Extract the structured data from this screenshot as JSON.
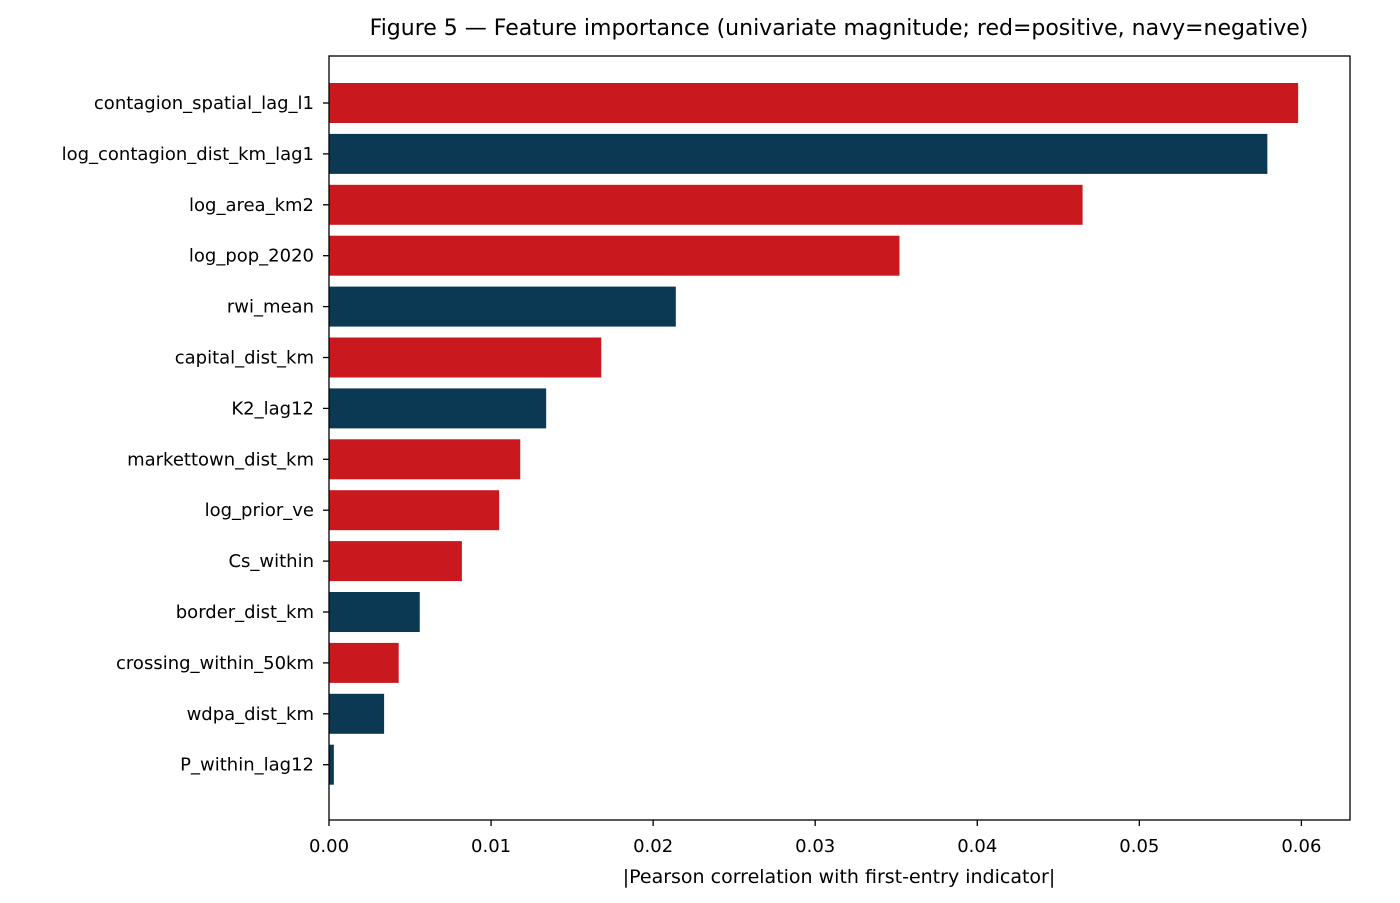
{
  "chart_data": {
    "type": "bar",
    "orientation": "horizontal",
    "title": "Figure 5 — Feature importance (univariate magnitude; red=positive, navy=negative)",
    "xlabel": "|Pearson correlation with first-entry indicator|",
    "ylabel": "",
    "xlim": [
      0,
      0.063
    ],
    "xticks": [
      "0.00",
      "0.01",
      "0.02",
      "0.03",
      "0.04",
      "0.05",
      "0.06"
    ],
    "grid": false,
    "legend": "none",
    "colors": {
      "positive": "#c9191e",
      "negative": "#0b3954"
    },
    "bars": [
      {
        "category": "contagion_spatial_lag_l1",
        "value": 0.0598,
        "sign": "positive"
      },
      {
        "category": "log_contagion_dist_km_lag1",
        "value": 0.0579,
        "sign": "negative"
      },
      {
        "category": "log_area_km2",
        "value": 0.0465,
        "sign": "positive"
      },
      {
        "category": "log_pop_2020",
        "value": 0.0352,
        "sign": "positive"
      },
      {
        "category": "rwi_mean",
        "value": 0.0214,
        "sign": "negative"
      },
      {
        "category": "capital_dist_km",
        "value": 0.0168,
        "sign": "positive"
      },
      {
        "category": "K2_lag12",
        "value": 0.0134,
        "sign": "negative"
      },
      {
        "category": "markettown_dist_km",
        "value": 0.0118,
        "sign": "positive"
      },
      {
        "category": "log_prior_ve",
        "value": 0.0105,
        "sign": "positive"
      },
      {
        "category": "Cs_within",
        "value": 0.0082,
        "sign": "positive"
      },
      {
        "category": "border_dist_km",
        "value": 0.0056,
        "sign": "negative"
      },
      {
        "category": "crossing_within_50km",
        "value": 0.0043,
        "sign": "positive"
      },
      {
        "category": "wdpa_dist_km",
        "value": 0.0034,
        "sign": "negative"
      },
      {
        "category": "P_within_lag12",
        "value": 0.0003,
        "sign": "negative"
      }
    ]
  }
}
